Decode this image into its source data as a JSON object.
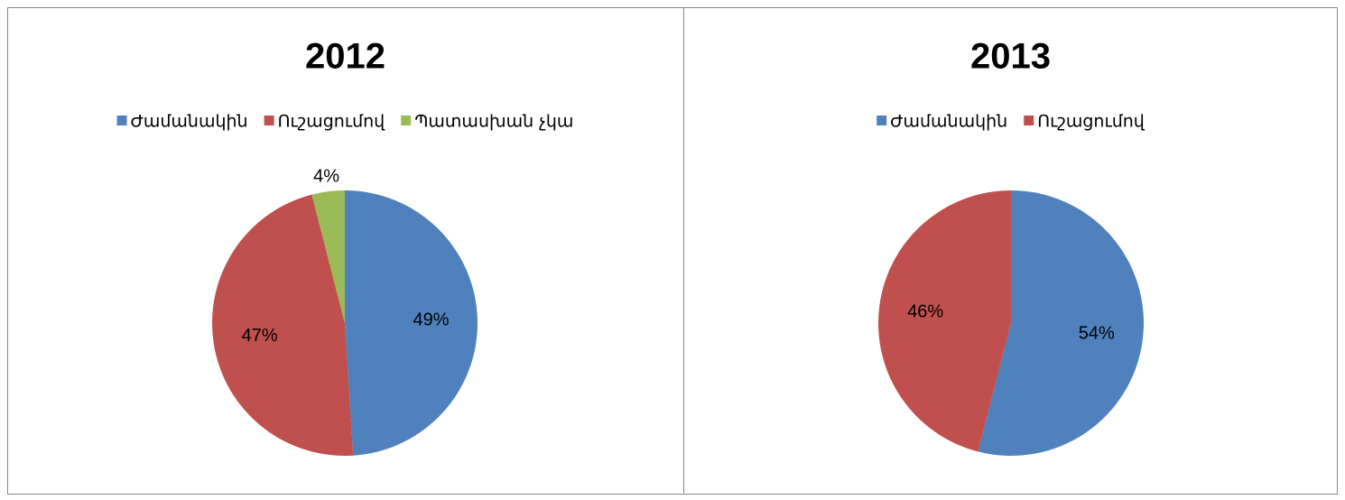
{
  "chart_data": [
    {
      "type": "pie",
      "title": "2012",
      "categories": [
        "Ժամանակին",
        "Ուշացումով",
        "Պատասխան չկա"
      ],
      "values": [
        49,
        47,
        4
      ],
      "value_labels": [
        "49%",
        "47%",
        "4%"
      ],
      "colors": [
        "#4f81bd",
        "#c0504d",
        "#9bbb59"
      ],
      "legend": "top"
    },
    {
      "type": "pie",
      "title": "2013",
      "categories": [
        "Ժամանակին",
        "Ուշացումով"
      ],
      "values": [
        54,
        46
      ],
      "value_labels": [
        "54%",
        "46%"
      ],
      "colors": [
        "#4f81bd",
        "#c0504d"
      ],
      "legend": "top"
    }
  ]
}
